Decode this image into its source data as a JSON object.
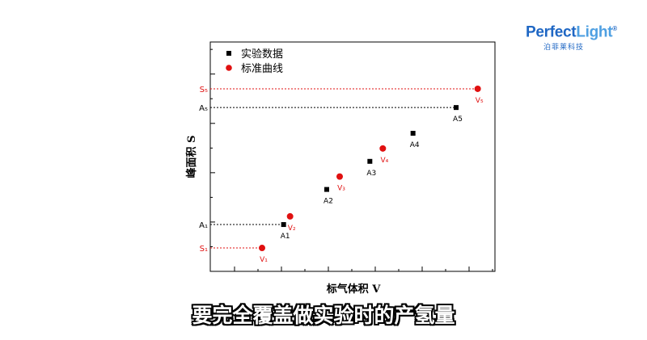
{
  "logo": {
    "main_dark": "Perfect",
    "main_light": "Light",
    "reg": "®",
    "sub": "泊菲莱科技"
  },
  "subtitle": "要完全覆盖做实验时的产氢量",
  "chart_data": {
    "type": "scatter",
    "xlabel": "标气体积 V",
    "ylabel": "峰面积 S",
    "legend_position": "top-left",
    "grid": false,
    "series": [
      {
        "name": "实验数据",
        "marker": "square",
        "color": "#000000",
        "points": [
          {
            "label": "A1",
            "x": 1.0,
            "y": 1.0
          },
          {
            "label": "A2",
            "x": 2.0,
            "y": 2.5
          },
          {
            "label": "A3",
            "x": 3.0,
            "y": 3.7
          },
          {
            "label": "A4",
            "x": 4.0,
            "y": 4.9
          },
          {
            "label": "A5",
            "x": 5.0,
            "y": 6.0
          }
        ]
      },
      {
        "name": "标准曲线",
        "marker": "circle",
        "color": "#e01010",
        "points": [
          {
            "label": "V₁",
            "x": 0.5,
            "y": 0.0
          },
          {
            "label": "V₂",
            "x": 1.15,
            "y": 1.35
          },
          {
            "label": "V₃",
            "x": 2.3,
            "y": 3.05
          },
          {
            "label": "V₄",
            "x": 3.3,
            "y": 4.25
          },
          {
            "label": "V₅",
            "x": 5.5,
            "y": 6.8
          }
        ]
      }
    ],
    "guides": [
      {
        "label": "S₁",
        "color": "#e01010",
        "x": 0.5,
        "y": 0.0
      },
      {
        "label": "A₁",
        "color": "#000000",
        "x": 1.0,
        "y": 1.0
      },
      {
        "label": "A₅",
        "color": "#000000",
        "x": 5.0,
        "y": 6.0
      },
      {
        "label": "S₅",
        "color": "#e01010",
        "x": 5.5,
        "y": 6.8
      }
    ],
    "xlim": [
      -0.7,
      5.9
    ],
    "ylim": [
      -1.0,
      8.8
    ]
  }
}
